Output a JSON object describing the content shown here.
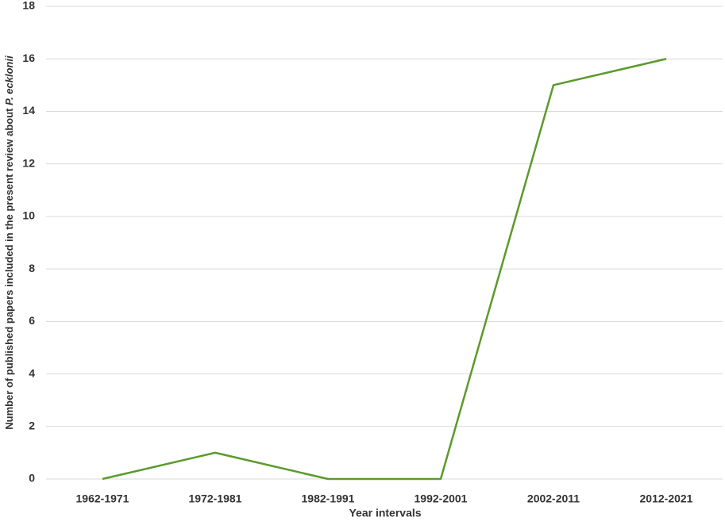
{
  "chart_data": {
    "type": "line",
    "x_label": "Year intervals",
    "y_label": [
      "Number of published papers included in the present review about ",
      "P. ecklonii"
    ],
    "categories": [
      "1962-1971",
      "1972-1981",
      "1982-1991",
      "1992-2001",
      "2002-2011",
      "2012-2021"
    ],
    "values": [
      0,
      1,
      0,
      0,
      15,
      16
    ],
    "color": "#5b9a2a",
    "ylim": [
      0,
      18
    ],
    "yticks": [
      0,
      2,
      4,
      6,
      8,
      10,
      12,
      14,
      16,
      18
    ],
    "grid": true
  }
}
